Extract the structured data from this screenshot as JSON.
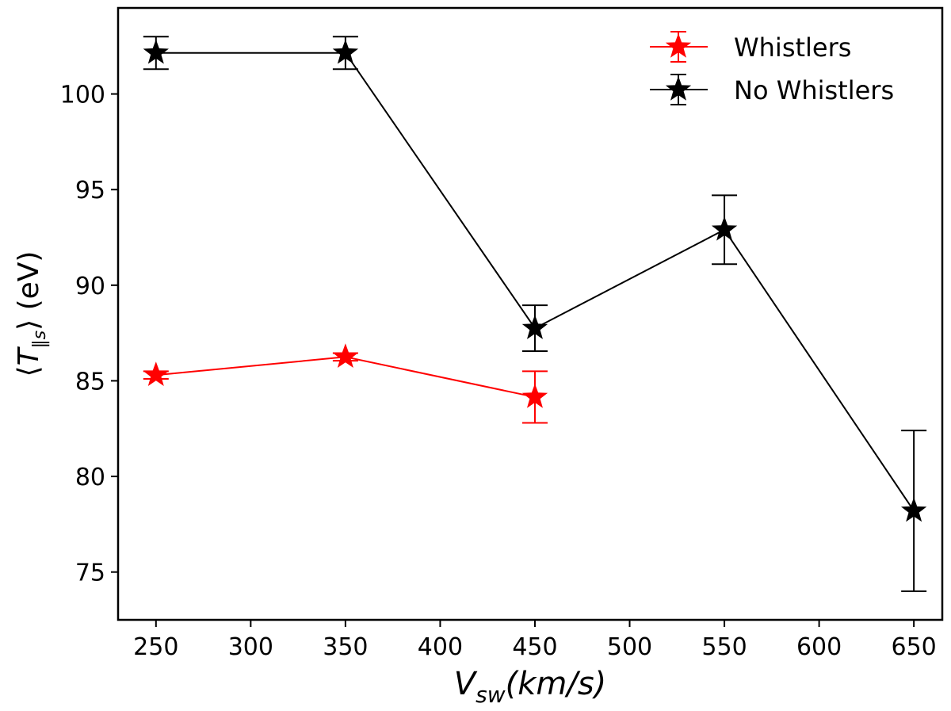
{
  "chart_data": {
    "type": "line",
    "title": "",
    "xlabel": "V_sw(km/s)",
    "xlabel_main": "V",
    "xlabel_sub": "sw",
    "xlabel_rest": "(km/s)",
    "ylabel": "⟨T‖s⟩ (eV)",
    "ylabel_parts": {
      "open": "⟨",
      "var": "T",
      "sub": "‖s",
      "close": "⟩",
      "unit": " (eV)"
    },
    "xlim": [
      230,
      665
    ],
    "ylim": [
      72.5,
      104.5
    ],
    "xticks": [
      250,
      300,
      350,
      400,
      450,
      500,
      550,
      600,
      650
    ],
    "yticks": [
      75,
      80,
      85,
      90,
      95,
      100
    ],
    "grid": false,
    "legend_position": "top-right",
    "series": [
      {
        "name": "Whistlers",
        "color": "#ff0000",
        "x": [
          250,
          350,
          450
        ],
        "y": [
          85.3,
          86.25,
          84.15
        ],
        "yerr": [
          0.2,
          0.2,
          1.35
        ]
      },
      {
        "name": "No Whistlers",
        "color": "#000000",
        "x": [
          250,
          350,
          450,
          550,
          650
        ],
        "y": [
          102.15,
          102.15,
          87.75,
          92.9,
          78.2
        ],
        "yerr": [
          0.85,
          0.85,
          1.2,
          1.8,
          4.2
        ]
      }
    ]
  }
}
